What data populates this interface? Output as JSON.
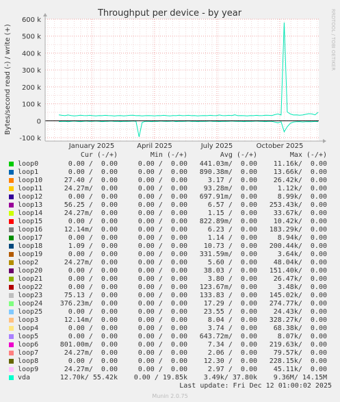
{
  "chart_data": {
    "type": "line",
    "title": "Throughput per device - by year",
    "ylabel": "Bytes/second read (-) / write (+)",
    "watermark": "RRDTOOL / TOBI OETIKER",
    "ylim": [
      -120000,
      600000
    ],
    "y_ticks": [
      {
        "value": 600000,
        "label": "600 k"
      },
      {
        "value": 500000,
        "label": "500 k"
      },
      {
        "value": 400000,
        "label": "400 k"
      },
      {
        "value": 300000,
        "label": "300 k"
      },
      {
        "value": 200000,
        "label": "200 k"
      },
      {
        "value": 100000,
        "label": "100 k"
      },
      {
        "value": 0,
        "label": "0"
      },
      {
        "value": -100000,
        "label": "-100 k"
      }
    ],
    "x_ticks": [
      "January 2025",
      "April 2025",
      "July 2025",
      "October 2025"
    ],
    "series": [
      {
        "name": "vda",
        "color": "#00e6b4",
        "write_values": [
          35000,
          32000,
          30000,
          34000,
          31000,
          29000,
          30000,
          33000,
          31000,
          30000,
          32000,
          30000,
          29000,
          31000,
          30000,
          32000,
          31000,
          30000,
          28000,
          30000,
          31000,
          29000,
          30000,
          32000,
          33000,
          30000,
          31000,
          29000,
          30000,
          31000,
          30000,
          29000,
          31000,
          30000,
          32000,
          30000,
          29000,
          31000,
          30000,
          33000,
          30000,
          31000,
          32000,
          30000,
          31000,
          29000,
          30000,
          31000,
          30000,
          32000,
          31000,
          30000,
          34000,
          31000,
          30000,
          32000,
          31000,
          35000,
          30000,
          31000,
          30000,
          29000,
          31000,
          30000,
          32000,
          30000,
          31000,
          33000,
          32000,
          31000,
          36000,
          40000,
          34000,
          580000,
          52000,
          40000,
          34000,
          35000,
          33000,
          34000,
          38000,
          42000,
          40000,
          35000,
          50000
        ],
        "read_values": [
          -5000,
          -4000,
          -3000,
          -6000,
          -3000,
          -2000,
          -4000,
          -5000,
          -3000,
          -2000,
          -4000,
          -3000,
          -2000,
          -3000,
          -5000,
          -4000,
          -3000,
          -2000,
          -4000,
          -3000,
          -5000,
          -3000,
          -4000,
          -3000,
          -2000,
          -3000,
          -95000,
          -10000,
          -4000,
          -3000,
          -5000,
          -3000,
          -4000,
          -2000,
          -3000,
          -4000,
          -3000,
          -2000,
          -5000,
          -3000,
          -4000,
          -3000,
          -2000,
          -4000,
          -3000,
          -5000,
          -3000,
          -4000,
          -3000,
          -2000,
          -4000,
          -3000,
          -5000,
          -3000,
          -4000,
          -3000,
          -2000,
          -3000,
          -4000,
          -3000,
          -5000,
          -3000,
          -4000,
          -3000,
          -2000,
          -3000,
          -4000,
          -5000,
          -3000,
          -4000,
          -8000,
          -12000,
          -6000,
          -65000,
          -35000,
          -15000,
          -8000,
          -6000,
          -5000,
          -7000,
          -6000,
          -5000,
          -6000,
          -4000,
          -5000
        ]
      }
    ]
  },
  "legend": {
    "headers": {
      "cur": "Cur (-/+)",
      "min": "Min (-/+)",
      "avg": "Avg (-/+)",
      "max": "Max (-/+)"
    },
    "rows": [
      {
        "name": "loop0",
        "color": "#00cc00",
        "cur": "0.00 /  0.00",
        "min": "0.00 /  0.00",
        "avg": "441.03m/  0.00",
        "max": "11.16k/  0.00"
      },
      {
        "name": "loop1",
        "color": "#0066b3",
        "cur": "0.00 /  0.00",
        "min": "0.00 /  0.00",
        "avg": "890.38m/  0.00",
        "max": "13.66k/  0.00"
      },
      {
        "name": "loop10",
        "color": "#ff8000",
        "cur": "27.40 /  0.00",
        "min": "0.00 /  0.00",
        "avg": "3.17 /  0.00",
        "max": "26.42k/  0.00"
      },
      {
        "name": "loop11",
        "color": "#ffcc00",
        "cur": "24.27m/  0.00",
        "min": "0.00 /  0.00",
        "avg": "93.28m/  0.00",
        "max": "1.12k/  0.00"
      },
      {
        "name": "loop12",
        "color": "#330099",
        "cur": "0.00 /  0.00",
        "min": "0.00 /  0.00",
        "avg": "697.91m/  0.00",
        "max": "8.99k/  0.00"
      },
      {
        "name": "loop13",
        "color": "#990099",
        "cur": "56.25 /  0.00",
        "min": "0.00 /  0.00",
        "avg": "6.57 /  0.00",
        "max": "253.43k/  0.00"
      },
      {
        "name": "loop14",
        "color": "#ccff00",
        "cur": "24.27m/  0.00",
        "min": "0.00 /  0.00",
        "avg": "1.15 /  0.00",
        "max": "33.67k/  0.00"
      },
      {
        "name": "loop15",
        "color": "#ff0000",
        "cur": "0.00 /  0.00",
        "min": "0.00 /  0.00",
        "avg": "822.89m/  0.00",
        "max": "10.42k/  0.00"
      },
      {
        "name": "loop16",
        "color": "#808080",
        "cur": "12.14m/  0.00",
        "min": "0.00 /  0.00",
        "avg": "6.23 /  0.00",
        "max": "183.29k/  0.00"
      },
      {
        "name": "loop17",
        "color": "#008f00",
        "cur": "0.00 /  0.00",
        "min": "0.00 /  0.00",
        "avg": "1.14 /  0.00",
        "max": "8.94k/  0.00"
      },
      {
        "name": "loop18",
        "color": "#00487d",
        "cur": "1.09 /  0.00",
        "min": "0.00 /  0.00",
        "avg": "10.73 /  0.00",
        "max": "200.44k/  0.00"
      },
      {
        "name": "loop19",
        "color": "#b35a00",
        "cur": "0.00 /  0.00",
        "min": "0.00 /  0.00",
        "avg": "331.59m/  0.00",
        "max": "3.64k/  0.00"
      },
      {
        "name": "loop2",
        "color": "#b38f00",
        "cur": "24.27m/  0.00",
        "min": "0.00 /  0.00",
        "avg": "5.60 /  0.00",
        "max": "48.04k/  0.00"
      },
      {
        "name": "loop20",
        "color": "#6b006b",
        "cur": "0.00 /  0.00",
        "min": "0.00 /  0.00",
        "avg": "38.03 /  0.00",
        "max": "151.40k/  0.00"
      },
      {
        "name": "loop21",
        "color": "#8fb300",
        "cur": "0.00 /  0.00",
        "min": "0.00 /  0.00",
        "avg": "3.80 /  0.00",
        "max": "26.47k/  0.00"
      },
      {
        "name": "loop22",
        "color": "#b30000",
        "cur": "0.00 /  0.00",
        "min": "0.00 /  0.00",
        "avg": "123.67m/  0.00",
        "max": "3.48k/  0.00"
      },
      {
        "name": "loop23",
        "color": "#bebebe",
        "cur": "75.13 /  0.00",
        "min": "0.00 /  0.00",
        "avg": "133.83 /  0.00",
        "max": "145.02k/  0.00"
      },
      {
        "name": "loop24",
        "color": "#80ff80",
        "cur": "376.23m/  0.00",
        "min": "0.00 /  0.00",
        "avg": "17.29 /  0.00",
        "max": "274.77k/  0.00"
      },
      {
        "name": "loop25",
        "color": "#80c9ff",
        "cur": "0.00 /  0.00",
        "min": "0.00 /  0.00",
        "avg": "23.55 /  0.00",
        "max": "24.43k/  0.00"
      },
      {
        "name": "loop3",
        "color": "#ffc080",
        "cur": "12.14m/  0.00",
        "min": "0.00 /  0.00",
        "avg": "8.04 /  0.00",
        "max": "328.27k/  0.00"
      },
      {
        "name": "loop4",
        "color": "#ffe680",
        "cur": "0.00 /  0.00",
        "min": "0.00 /  0.00",
        "avg": "3.74 /  0.00",
        "max": "68.38k/  0.00"
      },
      {
        "name": "loop5",
        "color": "#aa80ff",
        "cur": "0.00 /  0.00",
        "min": "0.00 /  0.00",
        "avg": "643.72m/  0.00",
        "max": "8.07k/  0.00"
      },
      {
        "name": "loop6",
        "color": "#ee00cc",
        "cur": "801.00m/  0.00",
        "min": "0.00 /  0.00",
        "avg": "7.34 /  0.00",
        "max": "219.63k/  0.00"
      },
      {
        "name": "loop7",
        "color": "#ff8080",
        "cur": "24.27m/  0.00",
        "min": "0.00 /  0.00",
        "avg": "2.06 /  0.00",
        "max": "79.57k/  0.00"
      },
      {
        "name": "loop8",
        "color": "#666600",
        "cur": "0.00 /  0.00",
        "min": "0.00 /  0.00",
        "avg": "12.30 /  0.00",
        "max": "228.15k/  0.00"
      },
      {
        "name": "loop9",
        "color": "#ffbfff",
        "cur": "24.27m/  0.00",
        "min": "0.00 /  0.00",
        "avg": "2.97 /  0.00",
        "max": "45.11k/  0.00"
      },
      {
        "name": "vda",
        "color": "#00ffcc",
        "cur": "12.70k/ 55.42k",
        "min": "0.00 / 19.85k",
        "avg": "3.49k/ 37.80k",
        "max": "9.36M/ 14.15M"
      }
    ]
  },
  "last_update": "Last update: Fri Dec 12 01:00:02 2025",
  "footer": "Munin 2.0.75"
}
